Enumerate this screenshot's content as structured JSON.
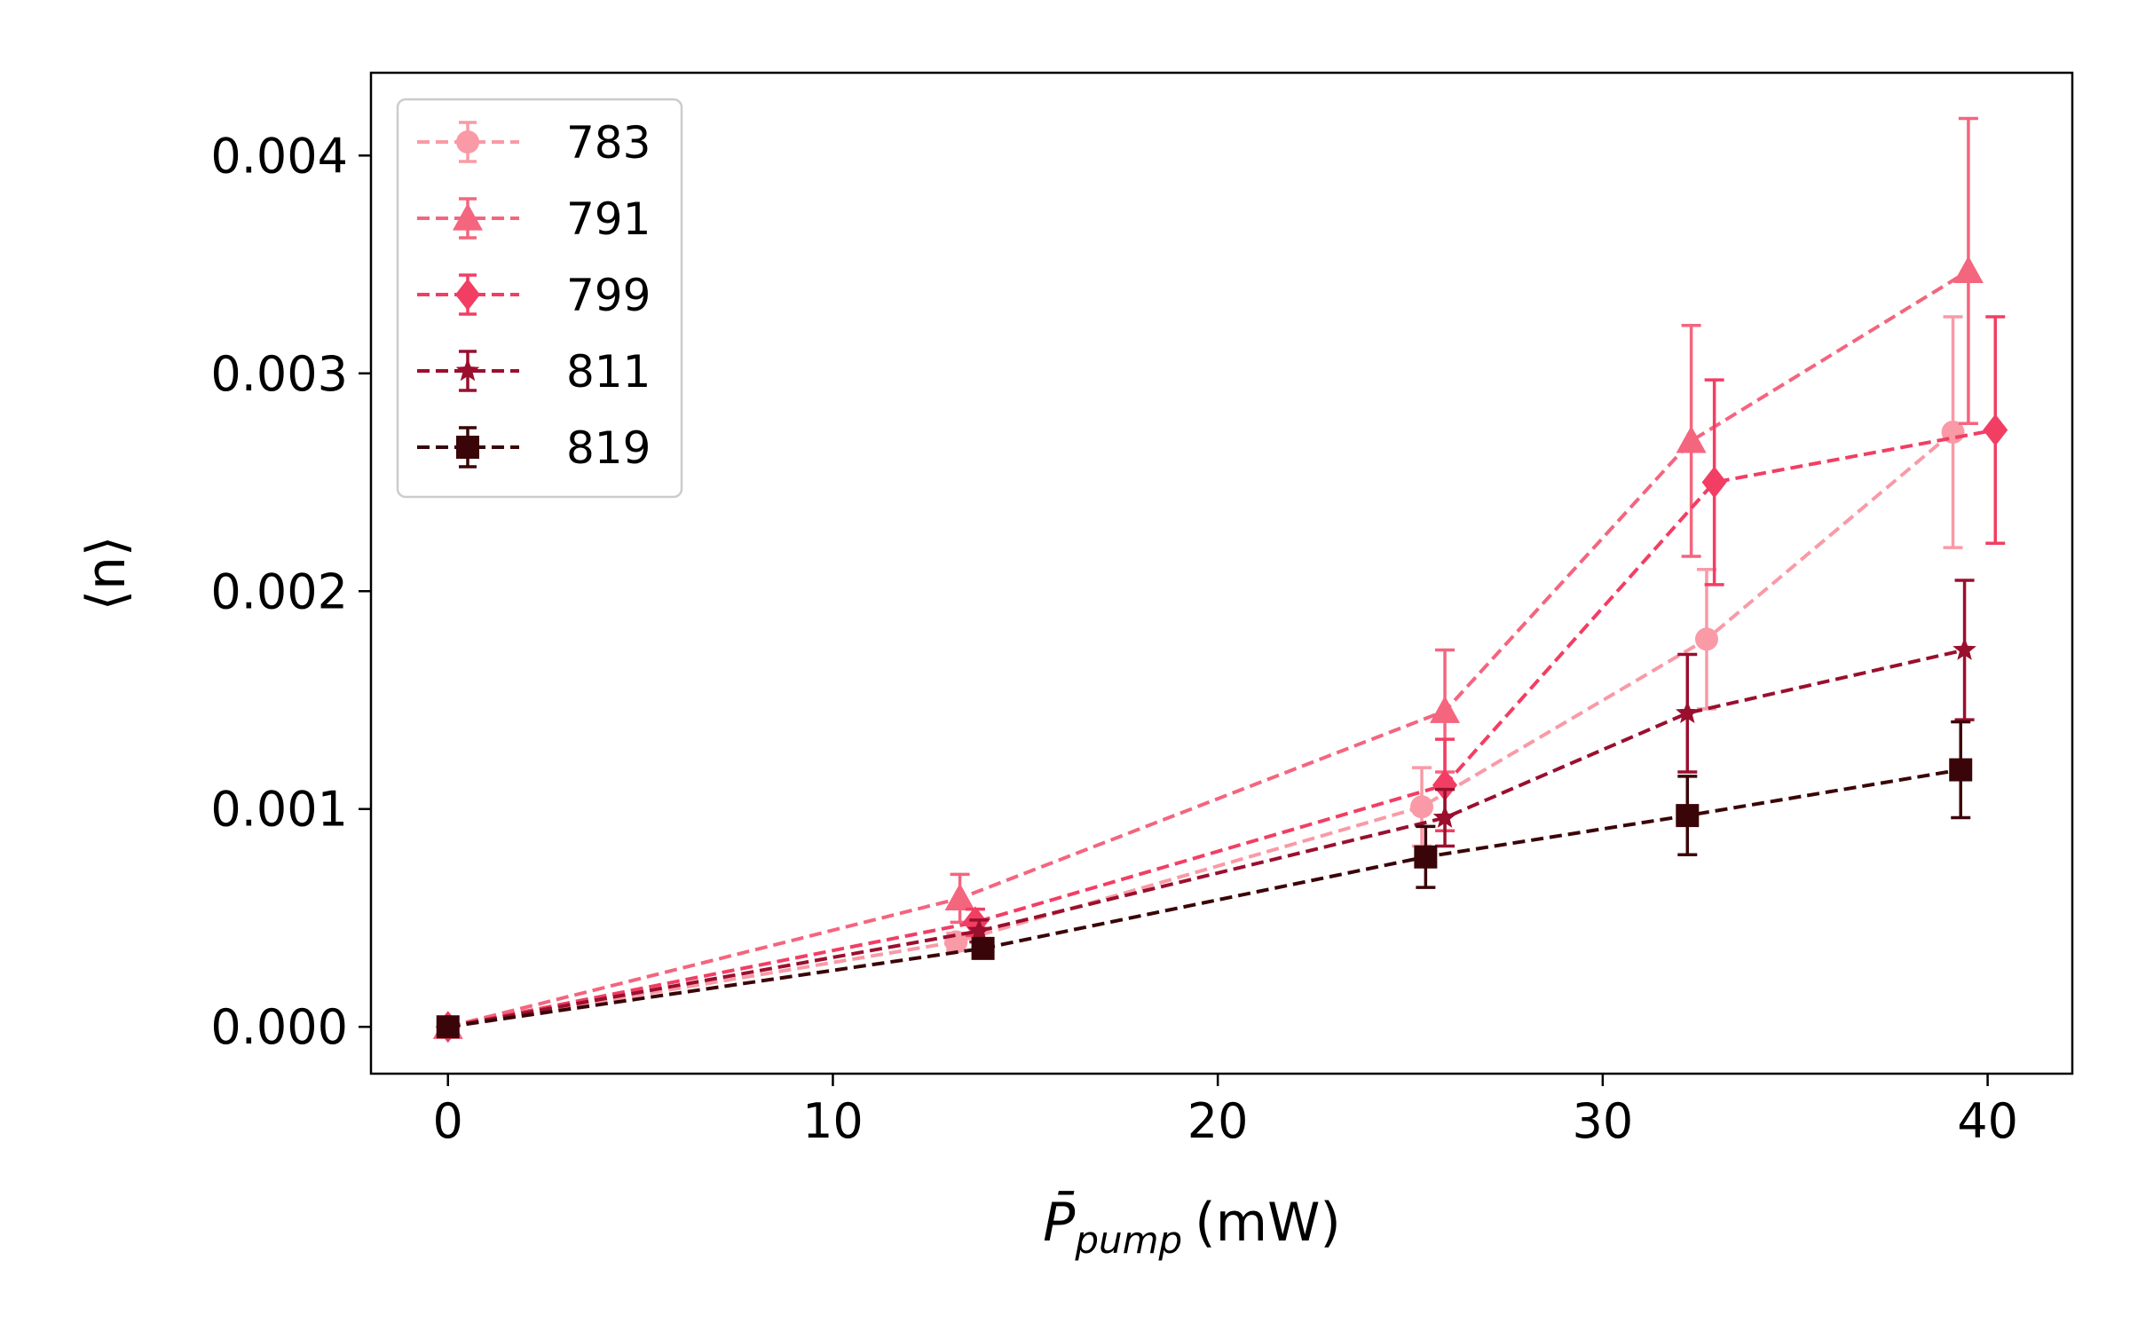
{
  "chart_data": {
    "type": "line",
    "title": "",
    "xlabel": "P̄",
    "xlabel_sub": "pump",
    "xlabel_unit": "(mW)",
    "ylabel": "⟨n⟩",
    "xlim": [
      -2,
      42.2
    ],
    "ylim": [
      -0.000215,
      0.00438
    ],
    "xticks": [
      0,
      10,
      20,
      30,
      40
    ],
    "xtick_labels": [
      "0",
      "10",
      "20",
      "30",
      "40"
    ],
    "yticks": [
      0,
      0.001,
      0.002,
      0.003,
      0.004
    ],
    "ytick_labels": [
      "0.000",
      "0.001",
      "0.002",
      "0.003",
      "0.004"
    ],
    "grid": false,
    "legend_position": "top-left",
    "series": [
      {
        "name": "783",
        "color": "#f99aa6",
        "marker": "circle",
        "dash": "dashed",
        "x": [
          0,
          13.2,
          25.3,
          32.7,
          39.1
        ],
        "y": [
          0,
          0.00039,
          0.00101,
          0.00178,
          0.00273
        ],
        "err": [
          1e-05,
          4e-05,
          0.00018,
          0.00032,
          0.00053
        ]
      },
      {
        "name": "791",
        "color": "#f4657e",
        "marker": "triangle",
        "dash": "dashed",
        "x": [
          0,
          13.3,
          25.9,
          32.3,
          39.5
        ],
        "y": [
          0,
          0.00059,
          0.00145,
          0.00269,
          0.00347
        ],
        "err": [
          1e-05,
          0.00011,
          0.00028,
          0.00053,
          0.0007
        ]
      },
      {
        "name": "799",
        "color": "#f23e63",
        "marker": "diamond",
        "dash": "dashed",
        "x": [
          0,
          13.7,
          25.9,
          32.9,
          40.2
        ],
        "y": [
          0,
          0.00048,
          0.00111,
          0.0025,
          0.00274
        ],
        "err": [
          1e-05,
          6e-05,
          0.00021,
          0.00047,
          0.00052
        ]
      },
      {
        "name": "811",
        "color": "#9a0f2e",
        "marker": "star",
        "dash": "dashed",
        "x": [
          0,
          13.8,
          25.9,
          32.2,
          39.4
        ],
        "y": [
          0,
          0.00044,
          0.00096,
          0.00144,
          0.00173
        ],
        "err": [
          1e-05,
          5e-05,
          0.00013,
          0.00027,
          0.00032
        ]
      },
      {
        "name": "819",
        "color": "#3a0508",
        "marker": "square",
        "dash": "dashed",
        "x": [
          0,
          13.9,
          25.4,
          32.2,
          39.3
        ],
        "y": [
          0,
          0.00036,
          0.00078,
          0.00097,
          0.00118
        ],
        "err": [
          1e-05,
          4e-05,
          0.00014,
          0.00018,
          0.00022
        ]
      }
    ]
  }
}
